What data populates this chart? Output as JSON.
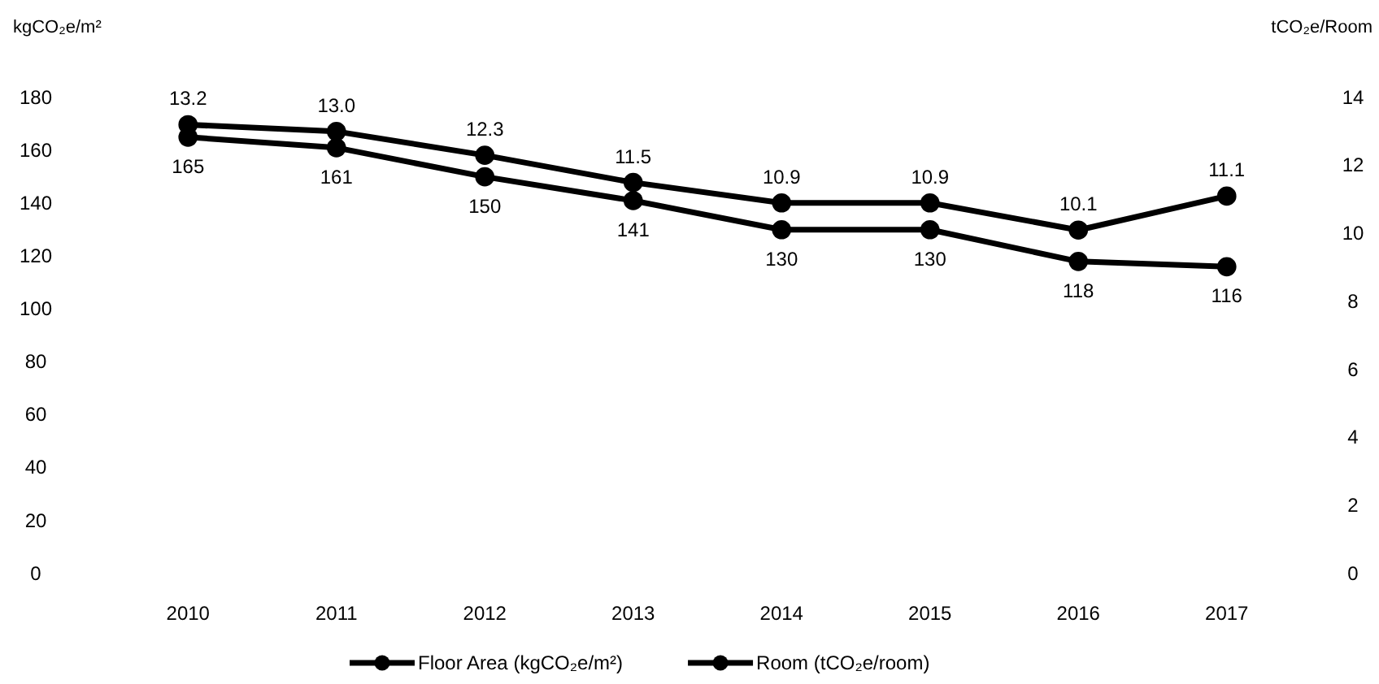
{
  "chart_data": {
    "type": "line",
    "ylabel": "kgCO₂e/m²",
    "y2label": "tCO₂e/Room",
    "categories": [
      "2010",
      "2011",
      "2012",
      "2013",
      "2014",
      "2015",
      "2016",
      "2017"
    ],
    "series": [
      {
        "name": "Floor Area (kgCO₂e/m²)",
        "color": "#000000",
        "values": [
          165,
          161,
          150,
          141,
          130,
          130,
          118,
          116
        ],
        "value_labels": [
          "165",
          "161",
          "150",
          "141",
          "130",
          "130",
          "118",
          "116"
        ]
      },
      {
        "name": "Room (tCO₂e/room)",
        "color": "#000000",
        "axis": "y2",
        "values": [
          13.2,
          13.0,
          12.3,
          11.5,
          10.9,
          10.9,
          10.1,
          11.1
        ],
        "value_labels": [
          "13.2",
          "13.0",
          "12.3",
          "11.5",
          "10.9",
          "10.9",
          "10.1",
          "11.1"
        ]
      }
    ],
    "ylim": [
      0,
      180
    ],
    "yticks": [
      0,
      20,
      40,
      60,
      80,
      100,
      120,
      140,
      160,
      180
    ],
    "y2lim": [
      0,
      14
    ],
    "y2ticks": [
      0,
      2,
      4,
      6,
      8,
      10,
      12,
      14
    ],
    "marker": "circle",
    "line_style": "solid",
    "legend": "bottom",
    "grid": false
  }
}
